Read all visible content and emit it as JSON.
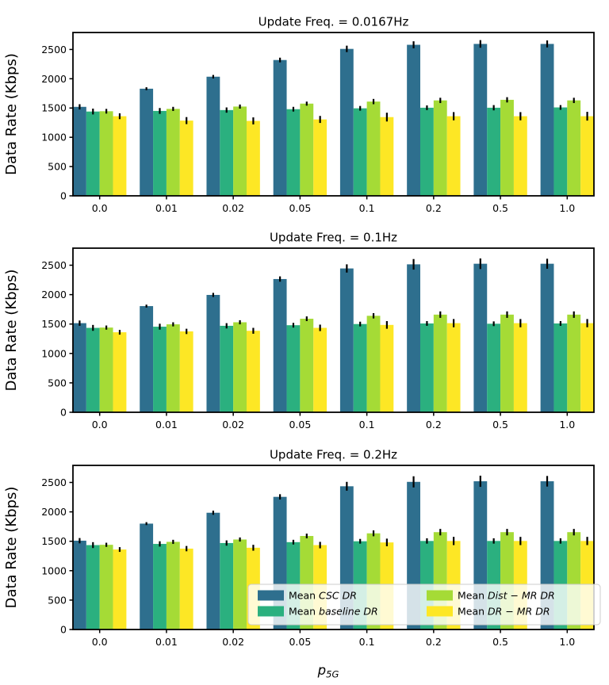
{
  "figure": {
    "ylabel": "Data Rate (Kbps)",
    "xlabel": {
      "base": "p",
      "subscript": "5G"
    },
    "background_color": "#ffffff",
    "spine_color": "#000000",
    "legend": {
      "position": "lower-center-of-third-subplot",
      "background_color": "#ffffff",
      "border_color": "#cccccc",
      "items": [
        {
          "prefix": "Mean ",
          "math": "CSC DR",
          "color": "#2e6f8e"
        },
        {
          "prefix": "Mean ",
          "math": "baseline DR",
          "color": "#2bb07f"
        },
        {
          "prefix": "Mean ",
          "math": "Dist − MR DR",
          "color": "#a5db36"
        },
        {
          "prefix": "Mean ",
          "math": "DR − MR DR",
          "color": "#fde725"
        }
      ]
    }
  },
  "chart_data": [
    {
      "type": "bar",
      "title": "Update Freq. = 0.0167Hz",
      "xlabel": "",
      "ylabel": "Data Rate (Kbps)",
      "categories": [
        "0.0",
        "0.01",
        "0.02",
        "0.05",
        "0.1",
        "0.2",
        "0.5",
        "1.0"
      ],
      "ylim": [
        0,
        2790
      ],
      "yticks": [
        0,
        500,
        1000,
        1500,
        2000,
        2500
      ],
      "grid": false,
      "error_bars": true,
      "series": [
        {
          "name": "Mean CSC DR",
          "color": "#2e6f8e",
          "values": [
            1520,
            1830,
            2035,
            2320,
            2510,
            2580,
            2595,
            2595
          ],
          "errors": [
            45,
            25,
            30,
            40,
            55,
            60,
            65,
            60
          ]
        },
        {
          "name": "Mean baseline DR",
          "color": "#2bb07f",
          "values": [
            1440,
            1450,
            1465,
            1480,
            1495,
            1505,
            1505,
            1510
          ],
          "errors": [
            50,
            50,
            45,
            40,
            40,
            40,
            45,
            40
          ]
        },
        {
          "name": "Mean Dist − MR DR",
          "color": "#a5db36",
          "values": [
            1445,
            1485,
            1525,
            1575,
            1610,
            1630,
            1640,
            1630
          ],
          "errors": [
            40,
            35,
            35,
            35,
            45,
            45,
            45,
            45
          ]
        },
        {
          "name": "Mean DR − MR DR",
          "color": "#fde725",
          "values": [
            1360,
            1285,
            1280,
            1305,
            1345,
            1360,
            1360,
            1360
          ],
          "errors": [
            50,
            60,
            60,
            60,
            75,
            70,
            70,
            75
          ]
        }
      ]
    },
    {
      "type": "bar",
      "title": "Update Freq. = 0.1Hz",
      "xlabel": "",
      "ylabel": "Data Rate (Kbps)",
      "categories": [
        "0.0",
        "0.01",
        "0.02",
        "0.05",
        "0.1",
        "0.2",
        "0.5",
        "1.0"
      ],
      "ylim": [
        0,
        2790
      ],
      "yticks": [
        0,
        500,
        1000,
        1500,
        2000,
        2500
      ],
      "grid": false,
      "error_bars": true,
      "series": [
        {
          "name": "Mean CSC DR",
          "color": "#2e6f8e",
          "values": [
            1515,
            1805,
            1995,
            2265,
            2445,
            2515,
            2525,
            2525
          ],
          "errors": [
            45,
            25,
            35,
            45,
            70,
            90,
            90,
            85
          ]
        },
        {
          "name": "Mean baseline DR",
          "color": "#2bb07f",
          "values": [
            1435,
            1455,
            1470,
            1480,
            1500,
            1510,
            1505,
            1510
          ],
          "errors": [
            50,
            50,
            45,
            40,
            40,
            40,
            40,
            40
          ]
        },
        {
          "name": "Mean Dist − MR DR",
          "color": "#a5db36",
          "values": [
            1440,
            1495,
            1530,
            1590,
            1640,
            1660,
            1660,
            1660
          ],
          "errors": [
            35,
            35,
            35,
            40,
            45,
            55,
            55,
            55
          ]
        },
        {
          "name": "Mean DR − MR DR",
          "color": "#fde725",
          "values": [
            1360,
            1375,
            1385,
            1435,
            1485,
            1515,
            1515,
            1515
          ],
          "errors": [
            40,
            45,
            50,
            55,
            65,
            70,
            70,
            70
          ]
        }
      ]
    },
    {
      "type": "bar",
      "title": "Update Freq. = 0.2Hz",
      "xlabel": "p_{5G}",
      "ylabel": "Data Rate (Kbps)",
      "categories": [
        "0.0",
        "0.01",
        "0.02",
        "0.05",
        "0.1",
        "0.2",
        "0.5",
        "1.0"
      ],
      "ylim": [
        0,
        2790
      ],
      "yticks": [
        0,
        500,
        1000,
        1500,
        2000,
        2500
      ],
      "grid": false,
      "error_bars": true,
      "legend_visible": true,
      "series": [
        {
          "name": "Mean CSC DR",
          "color": "#2e6f8e",
          "values": [
            1510,
            1800,
            1985,
            2255,
            2435,
            2510,
            2520,
            2520
          ],
          "errors": [
            45,
            25,
            35,
            45,
            75,
            95,
            95,
            90
          ]
        },
        {
          "name": "Mean baseline DR",
          "color": "#2bb07f",
          "values": [
            1435,
            1455,
            1470,
            1485,
            1500,
            1505,
            1505,
            1505
          ],
          "errors": [
            50,
            45,
            45,
            40,
            40,
            45,
            45,
            45
          ]
        },
        {
          "name": "Mean Dist − MR DR",
          "color": "#a5db36",
          "values": [
            1440,
            1490,
            1530,
            1590,
            1635,
            1655,
            1655,
            1655
          ],
          "errors": [
            35,
            35,
            35,
            40,
            50,
            55,
            55,
            55
          ]
        },
        {
          "name": "Mean DR − MR DR",
          "color": "#fde725",
          "values": [
            1360,
            1375,
            1390,
            1435,
            1480,
            1505,
            1505,
            1505
          ],
          "errors": [
            40,
            45,
            50,
            55,
            65,
            70,
            70,
            70
          ]
        }
      ]
    }
  ]
}
